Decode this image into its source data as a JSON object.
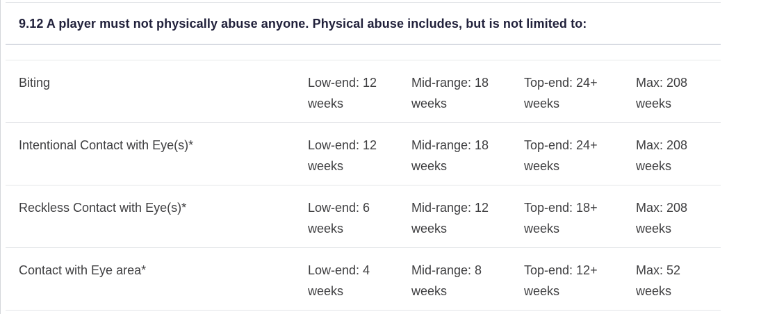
{
  "section": {
    "heading": "9.12 A player must not physically abuse anyone. Physical abuse includes, but is not limited to:"
  },
  "table": {
    "rows": [
      {
        "offence": "Biting",
        "low": {
          "line1": "Low-end: 12",
          "line2": "weeks"
        },
        "mid": {
          "line1": "Mid-range: 18",
          "line2": "weeks"
        },
        "top": {
          "line1": "Top-end: 24+",
          "line2": "weeks"
        },
        "max": {
          "line1": "Max: 208",
          "line2": "weeks"
        }
      },
      {
        "offence": "Intentional Contact with Eye(s)*",
        "low": {
          "line1": "Low-end: 12",
          "line2": "weeks"
        },
        "mid": {
          "line1": "Mid-range: 18",
          "line2": "weeks"
        },
        "top": {
          "line1": "Top-end: 24+",
          "line2": "weeks"
        },
        "max": {
          "line1": "Max: 208",
          "line2": "weeks"
        }
      },
      {
        "offence": "Reckless Contact with Eye(s)*",
        "low": {
          "line1": "Low-end: 6",
          "line2": "weeks"
        },
        "mid": {
          "line1": "Mid-range: 12",
          "line2": "weeks"
        },
        "top": {
          "line1": "Top-end: 18+",
          "line2": "weeks"
        },
        "max": {
          "line1": "Max: 208",
          "line2": "weeks"
        }
      },
      {
        "offence": "Contact with Eye area*",
        "low": {
          "line1": "Low-end: 4",
          "line2": "weeks"
        },
        "mid": {
          "line1": "Mid-range: 8",
          "line2": "weeks"
        },
        "top": {
          "line1": "Top-end: 12+",
          "line2": "weeks"
        },
        "max": {
          "line1": "Max: 52",
          "line2": "weeks"
        }
      }
    ]
  },
  "colors": {
    "heading_text": "#21213b",
    "body_text": "#3e3e40",
    "divider": "#e3e5e8",
    "strong_divider": "#d8dbe2",
    "background": "#ffffff"
  }
}
